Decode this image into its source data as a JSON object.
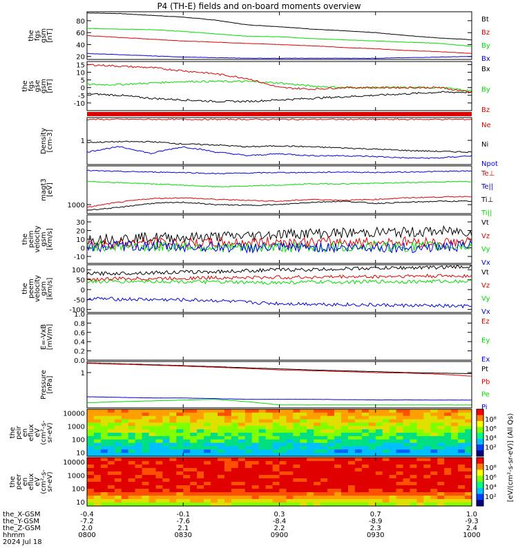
{
  "title": "P4 (TH-E) fields and on-board moments overview",
  "x_axis": {
    "row_labels": [
      "the_X-GSM",
      "the_Y-GSM",
      "the_Z-GSM",
      "hhmm",
      "2024 Jul 18"
    ],
    "columns": [
      [
        "-0.4",
        "-7.2",
        "2.0",
        "0800"
      ],
      [
        "-0.1",
        "-7.6",
        "2.1",
        "0830"
      ],
      [
        "0.3",
        "-8.4",
        "2.2",
        "0900"
      ],
      [
        "0.7",
        "-8.9",
        "2.3",
        "0930"
      ],
      [
        "1.0",
        "-9.3",
        "2.4",
        "1000"
      ]
    ]
  },
  "colors": {
    "black": "#000000",
    "red": "#dd0000",
    "green": "#00dd00",
    "blue": "#0000dd"
  },
  "colorbar": {
    "label": "[eV/(cm^2-s-sr-eV)] (All Qs)",
    "ticks_top": [
      "10^8",
      "10^6",
      "10^4",
      "10^2"
    ],
    "ticks_bottom": [
      "10^8",
      "10^6",
      "10^4",
      "10^2"
    ]
  },
  "chart_data": [
    {
      "type": "line",
      "id": "fgs_btot",
      "ylabel": [
        "the",
        "fgs",
        "gsm",
        "[nT]"
      ],
      "ylim": [
        15,
        95
      ],
      "yticks": [
        "80",
        "60",
        "40",
        "20"
      ],
      "x": [
        0,
        10,
        20,
        30,
        40,
        50,
        60,
        70,
        80,
        90,
        100,
        110,
        120
      ],
      "series": [
        {
          "name": "Bt",
          "color": "black",
          "values": [
            93,
            92,
            89,
            86,
            81,
            73,
            70,
            66,
            63,
            60,
            55,
            51,
            48
          ]
        },
        {
          "name": "Bz",
          "color": "red",
          "values": [
            55,
            52,
            49,
            46,
            44,
            42,
            40,
            38,
            35,
            33,
            30,
            28,
            25
          ]
        },
        {
          "name": "By",
          "color": "green",
          "values": [
            67,
            66,
            65,
            62,
            58,
            54,
            53,
            50,
            48,
            46,
            44,
            42,
            37
          ]
        },
        {
          "name": "Bx",
          "color": "blue",
          "values": [
            25,
            23,
            21,
            19,
            18,
            17,
            17,
            17,
            17,
            17,
            18,
            19,
            20
          ]
        }
      ]
    },
    {
      "type": "line",
      "id": "fgs_gse",
      "ylabel": [
        "the",
        "fgs",
        "gse",
        "gsm",
        "[nT]"
      ],
      "ylim": [
        -15,
        17
      ],
      "yticks": [
        "15",
        "10",
        "5",
        "0",
        "-5",
        "-10"
      ],
      "x": [
        0,
        10,
        20,
        30,
        40,
        50,
        60,
        70,
        80,
        90,
        100,
        110,
        120
      ],
      "series": [
        {
          "name": "Bx",
          "color": "black",
          "values": [
            -4,
            -5,
            -7,
            -8,
            -9,
            -9,
            -8,
            -7,
            -6,
            -5,
            -4,
            -3,
            -3
          ]
        },
        {
          "name": "By",
          "color": "green",
          "values": [
            2,
            2,
            3,
            4,
            4,
            4,
            3,
            1,
            0,
            0,
            0,
            0,
            -2
          ]
        },
        {
          "name": "Bz",
          "color": "red",
          "values": [
            15,
            14,
            13,
            11,
            9,
            6,
            0,
            -1,
            0,
            0,
            0,
            0,
            -3
          ]
        }
      ]
    },
    {
      "type": "line",
      "id": "density",
      "ylabel": [
        "Density",
        "[cm-3]"
      ],
      "ylim": [
        0.15,
        6
      ],
      "scale": "log",
      "yticks": [
        "1"
      ],
      "x": [
        0,
        10,
        20,
        30,
        40,
        50,
        60,
        70,
        80,
        90,
        100,
        110,
        120
      ],
      "series": [
        {
          "name": "Ne",
          "color": "red",
          "values": [
            5.2,
            5.2,
            5.2,
            5.2,
            5.2,
            5.2,
            5.2,
            5.2,
            5.2,
            5.2,
            5.2,
            5.2,
            5.2
          ]
        },
        {
          "name": "Ni",
          "color": "black",
          "values": [
            0.85,
            0.9,
            0.9,
            0.75,
            0.7,
            0.6,
            0.65,
            0.6,
            0.55,
            0.5,
            0.45,
            0.42,
            0.4
          ]
        },
        {
          "name": "Npot",
          "color": "blue",
          "values": [
            0.4,
            0.6,
            0.35,
            0.6,
            0.4,
            0.3,
            0.35,
            0.3,
            0.3,
            0.28,
            0.25,
            0.25,
            0.3
          ]
        }
      ]
    },
    {
      "type": "line",
      "id": "magt3",
      "ylabel": [
        "magt3",
        "[eV]"
      ],
      "ylim": [
        500,
        20000
      ],
      "scale": "log",
      "yticks": [
        "1000"
      ],
      "x": [
        0,
        10,
        20,
        30,
        40,
        50,
        60,
        70,
        80,
        90,
        100,
        110,
        120
      ],
      "series": [
        {
          "name": "Te⊥",
          "color": "red",
          "values": [
            800,
            1200,
            1600,
            1700,
            1500,
            1400,
            1300,
            1500,
            1400,
            1500,
            1700,
            1800,
            1900
          ]
        },
        {
          "name": "Te||",
          "color": "blue",
          "values": [
            14000,
            13000,
            12500,
            12000,
            11000,
            11500,
            12000,
            12000,
            12500,
            12000,
            12500,
            13000,
            13500
          ]
        },
        {
          "name": "Ti⊥",
          "color": "black",
          "values": [
            650,
            800,
            1100,
            1200,
            1000,
            950,
            1000,
            1200,
            1300,
            1100,
            1200,
            1300,
            1300
          ]
        },
        {
          "name": "Ti||",
          "color": "green",
          "values": [
            6000,
            5500,
            5000,
            4500,
            4000,
            4200,
            4500,
            5000,
            5000,
            5200,
            5500,
            5800,
            6000
          ]
        }
      ]
    },
    {
      "type": "line",
      "id": "peim_velocity",
      "ylabel": [
        "the",
        "peim",
        "velocity",
        "gsm",
        "[km/s]"
      ],
      "ylim": [
        -18,
        38
      ],
      "yticks": [
        "30",
        "20",
        "10",
        "0",
        "-10"
      ],
      "x": [
        0,
        10,
        20,
        30,
        40,
        50,
        60,
        70,
        80,
        90,
        100,
        110,
        120
      ],
      "series": [
        {
          "name": "Vt",
          "color": "black",
          "values": [
            10,
            11,
            12,
            12,
            13,
            14,
            16,
            17,
            17,
            18,
            18,
            19,
            19
          ]
        },
        {
          "name": "Vz",
          "color": "red",
          "values": [
            5,
            5,
            6,
            5,
            6,
            6,
            7,
            6,
            7,
            6,
            7,
            6,
            7
          ]
        },
        {
          "name": "Vy",
          "color": "green",
          "values": [
            2,
            2,
            1,
            2,
            1,
            0,
            1,
            0,
            1,
            2,
            1,
            2,
            2
          ]
        },
        {
          "name": "Vx",
          "color": "blue",
          "values": [
            1,
            2,
            2,
            1,
            1,
            0,
            0,
            1,
            0,
            1,
            0,
            1,
            2
          ]
        }
      ]
    },
    {
      "type": "line",
      "id": "peem_velocity",
      "ylabel": [
        "the",
        "peem",
        "velocity",
        "gsm",
        "[km/s]"
      ],
      "ylim": [
        -115,
        125
      ],
      "yticks": [
        "100",
        "50",
        "0",
        "-50",
        "-100"
      ],
      "x": [
        0,
        10,
        20,
        30,
        40,
        50,
        60,
        70,
        80,
        90,
        100,
        110,
        120
      ],
      "series": [
        {
          "name": "Vt",
          "color": "black",
          "values": [
            80,
            82,
            85,
            88,
            90,
            95,
            100,
            100,
            105,
            108,
            110,
            112,
            115
          ]
        },
        {
          "name": "Vz",
          "color": "red",
          "values": [
            50,
            55,
            55,
            58,
            60,
            60,
            62,
            62,
            65,
            65,
            68,
            68,
            70
          ]
        },
        {
          "name": "Vy",
          "color": "green",
          "values": [
            40,
            40,
            42,
            40,
            38,
            35,
            35,
            38,
            38,
            40,
            40,
            42,
            42
          ]
        },
        {
          "name": "Vx",
          "color": "blue",
          "values": [
            -45,
            -48,
            -50,
            -52,
            -55,
            -65,
            -70,
            -72,
            -75,
            -78,
            -80,
            -82,
            -85
          ]
        }
      ]
    },
    {
      "type": "line",
      "id": "efield",
      "ylabel": [
        "E=-VxB",
        "[mV/m]"
      ],
      "ylim": [
        0,
        1
      ],
      "yticks": [
        "1.0",
        "0.8",
        "0.6",
        "0.4",
        "0.2",
        "0.0"
      ],
      "x": [],
      "series": [
        {
          "name": "Ez",
          "color": "red",
          "values": []
        },
        {
          "name": "Ey",
          "color": "green",
          "values": []
        },
        {
          "name": "Ex",
          "color": "blue",
          "values": []
        }
      ]
    },
    {
      "type": "line",
      "id": "pressure",
      "ylabel": [
        "Pressure",
        "[nPa]"
      ],
      "ylim": [
        0.03,
        3
      ],
      "scale": "log",
      "yticks": [
        "1"
      ],
      "x": [
        0,
        10,
        20,
        30,
        40,
        50,
        60,
        70,
        80,
        90,
        100,
        110,
        120
      ],
      "series": [
        {
          "name": "Pt",
          "color": "black",
          "values": [
            2.6,
            2.4,
            2.2,
            2.0,
            1.8,
            1.6,
            1.45,
            1.3,
            1.2,
            1.1,
            1.0,
            0.95,
            0.9
          ]
        },
        {
          "name": "Pb",
          "color": "red",
          "values": [
            2.5,
            2.3,
            2.1,
            1.9,
            1.7,
            1.5,
            1.3,
            1.2,
            1.1,
            1.0,
            0.95,
            0.85,
            0.7
          ]
        },
        {
          "name": "Pe",
          "color": "green",
          "values": [
            0.05,
            0.055,
            0.06,
            0.065,
            0.07,
            0.055,
            0.04,
            0.04,
            0.04,
            0.04,
            0.04,
            0.04,
            0.04
          ]
        },
        {
          "name": "Pi",
          "color": "blue",
          "values": [
            0.09,
            0.085,
            0.08,
            0.08,
            0.075,
            0.07,
            0.07,
            0.07,
            0.068,
            0.066,
            0.066,
            0.065,
            0.065
          ]
        }
      ]
    },
    {
      "type": "heatmap",
      "id": "peir_spectrogram",
      "ylabel": [
        "the",
        "peir",
        "en",
        "eflux",
        "eV",
        "(cm^2-s-",
        "sr-eV)"
      ],
      "ylim": [
        5,
        20000
      ],
      "scale": "log",
      "yticks": [
        "10000",
        "1000",
        "100",
        "10"
      ]
    },
    {
      "type": "heatmap",
      "id": "peer_spectrogram",
      "ylabel": [
        "the",
        "peer",
        "en",
        "eflux",
        "eV",
        "(cm^2-s-",
        "sr-eV)"
      ],
      "ylim": [
        5,
        20000
      ],
      "scale": "log",
      "yticks": [
        "10000",
        "1000",
        "100",
        "10"
      ]
    }
  ]
}
